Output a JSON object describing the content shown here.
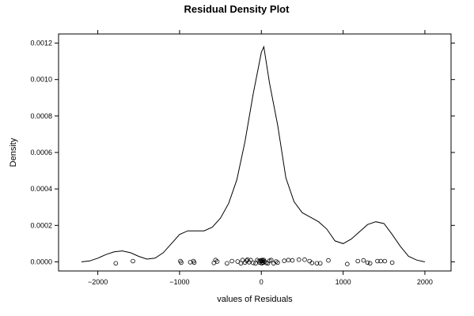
{
  "chart_data": {
    "type": "line",
    "title": "Residual Density Plot",
    "xlabel": "values of Residuals",
    "ylabel": "Density",
    "xlim": [
      -2480,
      2320
    ],
    "ylim": [
      -5e-05,
      0.00125
    ],
    "x_ticks": [
      -2000,
      -1000,
      0,
      1000,
      2000
    ],
    "x_tick_labels": [
      "−2000",
      "−1000",
      "0",
      "1000",
      "2000"
    ],
    "y_ticks": [
      0.0,
      0.0002,
      0.0004,
      0.0006,
      0.0008,
      0.001,
      0.0012
    ],
    "y_tick_labels": [
      "0.0000",
      "0.0002",
      "0.0004",
      "0.0006",
      "0.0008",
      "0.0010",
      "0.0012"
    ],
    "grid": false,
    "series": [
      {
        "x": [
          -2200,
          -2100,
          -2000,
          -1900,
          -1800,
          -1700,
          -1600,
          -1500,
          -1400,
          -1300,
          -1200,
          -1100,
          -1000,
          -900,
          -800,
          -700,
          -600,
          -500,
          -400,
          -300,
          -200,
          -100,
          0,
          30,
          100,
          200,
          300,
          400,
          500,
          600,
          700,
          800,
          900,
          1000,
          1100,
          1200,
          1300,
          1400,
          1500,
          1600,
          1700,
          1800,
          1900,
          2000
        ],
        "values": [
          0.0,
          5e-06,
          2e-05,
          4e-05,
          5.5e-05,
          6e-05,
          5e-05,
          3e-05,
          1.5e-05,
          2e-05,
          5e-05,
          0.0001,
          0.00015,
          0.00017,
          0.00017,
          0.00017,
          0.00019,
          0.00024,
          0.00032,
          0.00045,
          0.00066,
          0.00092,
          0.00115,
          0.00118,
          0.00098,
          0.00075,
          0.00046,
          0.00033,
          0.00027,
          0.000245,
          0.00022,
          0.00018,
          0.000115,
          0.0001,
          0.000125,
          0.000165,
          0.000205,
          0.00022,
          0.00021,
          0.00015,
          8.5e-05,
          3e-05,
          1e-05,
          0.0
        ]
      }
    ],
    "rug": {
      "x": [
        -1780,
        -1570,
        -990,
        -980,
        -870,
        -830,
        -820,
        -580,
        -560,
        -540,
        -420,
        -360,
        -290,
        -250,
        -230,
        -200,
        -180,
        -170,
        -150,
        -130,
        -100,
        -70,
        -50,
        -30,
        -20,
        -10,
        0,
        5,
        10,
        15,
        20,
        25,
        30,
        40,
        60,
        80,
        100,
        120,
        150,
        180,
        200,
        280,
        330,
        380,
        460,
        530,
        590,
        620,
        680,
        720,
        820,
        1050,
        1180,
        1250,
        1300,
        1330,
        1420,
        1460,
        1510,
        1600
      ],
      "y": [
        -8e-06,
        4e-06,
        4e-06,
        -4e-06,
        -2e-06,
        4e-06,
        -4e-06,
        -6e-06,
        1e-05,
        2e-06,
        -8e-06,
        4e-06,
        2e-06,
        -8e-06,
        1e-05,
        -4e-06,
        6e-06,
        1.2e-05,
        -2e-06,
        1e-05,
        -6e-06,
        -8e-06,
        1e-05,
        4e-06,
        -4e-06,
        8e-06,
        4e-06,
        -8e-06,
        1e-05,
        -2e-06,
        6e-06,
        -4e-06,
        1e-05,
        2e-06,
        -6e-06,
        -8e-06,
        6e-06,
        1e-05,
        -8e-06,
        2e-06,
        -4e-06,
        6e-06,
        1e-05,
        8e-06,
        1.2e-05,
        1.2e-05,
        4e-06,
        -6e-06,
        -8e-06,
        -8e-06,
        8e-06,
        -1.2e-05,
        4e-06,
        8e-06,
        -4e-06,
        -8e-06,
        4e-06,
        4e-06,
        4e-06,
        -4e-06
      ]
    }
  }
}
